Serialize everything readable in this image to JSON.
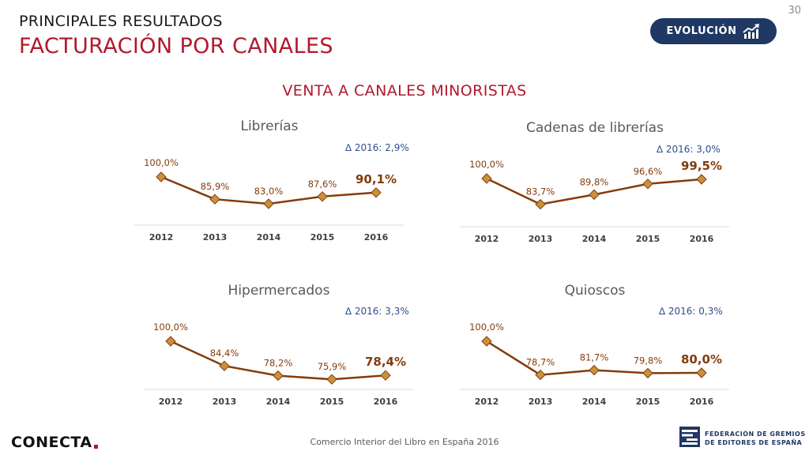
{
  "page_number": "30",
  "header": {
    "subtitle": "PRINCIPALES RESULTADOS",
    "title": "FACTURACIÓN POR CANALES",
    "badge_label": "EVOLUCIÓN",
    "badge_icon": "trend-up-chart-icon"
  },
  "section_title": "VENTA A CANALES MINORISTAS",
  "footer": {
    "caption": "Comercio Interior del Libro en España 2016",
    "logo_left": "CONECTA",
    "logo_right_line1": "FEDERACIÓN DE GREMIOS",
    "logo_right_line2": "DE EDITORES DE ESPAÑA"
  },
  "colors": {
    "accent_red": "#b01a2e",
    "navy": "#1f3864",
    "line_brown": "#843c0c",
    "marker_fill": "#c9913a",
    "delta_blue": "#2e4f8f"
  },
  "chart_data": [
    {
      "type": "line",
      "title": "Librerías",
      "delta_label": "∆ 2016:  2,9%",
      "categories": [
        "2012",
        "2013",
        "2014",
        "2015",
        "2016"
      ],
      "values": [
        100.0,
        85.9,
        83.0,
        87.6,
        90.1
      ],
      "labels": [
        "100,0%",
        "85,9%",
        "83,0%",
        "87,6%",
        "90,1%"
      ],
      "ylim": [
        0,
        100
      ],
      "grid": false
    },
    {
      "type": "line",
      "title": "Cadenas de librerías",
      "delta_label": "∆ 2016:  3,0%",
      "categories": [
        "2012",
        "2013",
        "2014",
        "2015",
        "2016"
      ],
      "values": [
        100.0,
        83.7,
        89.8,
        96.6,
        99.5
      ],
      "labels": [
        "100,0%",
        "83,7%",
        "89,8%",
        "96,6%",
        "99,5%"
      ],
      "ylim": [
        0,
        100
      ],
      "grid": false
    },
    {
      "type": "line",
      "title": "Hipermercados",
      "delta_label": "∆ 2016:  3,3%",
      "categories": [
        "2012",
        "2013",
        "2014",
        "2015",
        "2016"
      ],
      "values": [
        100.0,
        84.4,
        78.2,
        75.9,
        78.4
      ],
      "labels": [
        "100,0%",
        "84,4%",
        "78,2%",
        "75,9%",
        "78,4%"
      ],
      "ylim": [
        0,
        100
      ],
      "grid": false
    },
    {
      "type": "line",
      "title": "Quioscos",
      "delta_label": "∆ 2016:  0,3%",
      "categories": [
        "2012",
        "2013",
        "2014",
        "2015",
        "2016"
      ],
      "values": [
        100.0,
        78.7,
        81.7,
        79.8,
        80.0
      ],
      "labels": [
        "100,0%",
        "78,7%",
        "81,7%",
        "79,8%",
        "80,0%"
      ],
      "ylim": [
        0,
        100
      ],
      "grid": false
    }
  ]
}
